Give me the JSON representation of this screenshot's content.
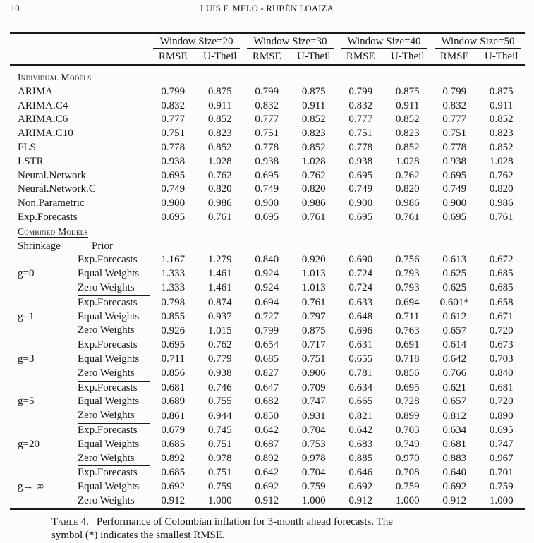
{
  "page": {
    "number": "10",
    "running_header": "LUIS F. MELO - RUBÉN LOAIZA"
  },
  "table": {
    "column_groups": [
      "Window Size=20",
      "Window Size=30",
      "Window Size=40",
      "Window Size=50"
    ],
    "metric_headers": [
      "RMSE",
      "U-Theil"
    ],
    "individual_models": {
      "section_label": "Individual Models",
      "rows": [
        {
          "label": "ARIMA",
          "values": [
            "0.799",
            "0.875",
            "0.799",
            "0.875",
            "0.799",
            "0.875",
            "0.799",
            "0.875"
          ]
        },
        {
          "label": "ARIMA.C4",
          "values": [
            "0.832",
            "0.911",
            "0.832",
            "0.911",
            "0.832",
            "0.911",
            "0.832",
            "0.911"
          ]
        },
        {
          "label": "ARIMA.C6",
          "values": [
            "0.777",
            "0.852",
            "0.777",
            "0.852",
            "0.777",
            "0.852",
            "0.777",
            "0.852"
          ]
        },
        {
          "label": "ARIMA.C10",
          "values": [
            "0.751",
            "0.823",
            "0.751",
            "0.823",
            "0.751",
            "0.823",
            "0.751",
            "0.823"
          ]
        },
        {
          "label": "FLS",
          "values": [
            "0.778",
            "0.852",
            "0.778",
            "0.852",
            "0.778",
            "0.852",
            "0.778",
            "0.852"
          ]
        },
        {
          "label": "LSTR",
          "values": [
            "0.938",
            "1.028",
            "0.938",
            "1.028",
            "0.938",
            "1.028",
            "0.938",
            "1.028"
          ]
        },
        {
          "label": "Neural.Network",
          "values": [
            "0.695",
            "0.762",
            "0.695",
            "0.762",
            "0.695",
            "0.762",
            "0.695",
            "0.762"
          ]
        },
        {
          "label": "Neural.Network.C",
          "values": [
            "0.749",
            "0.820",
            "0.749",
            "0.820",
            "0.749",
            "0.820",
            "0.749",
            "0.820"
          ]
        },
        {
          "label": "Non.Parametric",
          "values": [
            "0.900",
            "0.986",
            "0.900",
            "0.986",
            "0.900",
            "0.986",
            "0.900",
            "0.986"
          ]
        },
        {
          "label": "Exp.Forecasts",
          "values": [
            "0.695",
            "0.761",
            "0.695",
            "0.761",
            "0.695",
            "0.761",
            "0.695",
            "0.761"
          ]
        }
      ]
    },
    "combined_models": {
      "section_label": "Combined Models",
      "shrinkage_header": "Shrinkage",
      "prior_header": "Prior",
      "groups": [
        {
          "shrinkage": "g=0",
          "rows": [
            {
              "prior": "Exp.Forecasts",
              "underlined": false,
              "values": [
                "1.167",
                "1.279",
                "0.840",
                "0.920",
                "0.690",
                "0.756",
                "0.613",
                "0.672"
              ]
            },
            {
              "prior": "Equal Weights",
              "underlined": false,
              "values": [
                "1.333",
                "1.461",
                "0.924",
                "1.013",
                "0.724",
                "0.793",
                "0.625",
                "0.685"
              ]
            },
            {
              "prior": "Zero Weights",
              "underlined": true,
              "values": [
                "1.333",
                "1.461",
                "0.924",
                "1.013",
                "0.724",
                "0.793",
                "0.625",
                "0.685"
              ]
            }
          ]
        },
        {
          "shrinkage": "g=1",
          "rows": [
            {
              "prior": "Exp.Forecasts",
              "underlined": false,
              "values": [
                "0.798",
                "0.874",
                "0.694",
                "0.761",
                "0.633",
                "0.694",
                "0.601*",
                "0.658"
              ]
            },
            {
              "prior": "Equal Weights",
              "underlined": false,
              "values": [
                "0.855",
                "0.937",
                "0.727",
                "0.797",
                "0.648",
                "0.711",
                "0.612",
                "0.671"
              ]
            },
            {
              "prior": "Zero Weights",
              "underlined": true,
              "values": [
                "0.926",
                "1.015",
                "0.799",
                "0.875",
                "0.696",
                "0.763",
                "0.657",
                "0.720"
              ]
            }
          ]
        },
        {
          "shrinkage": "g=3",
          "rows": [
            {
              "prior": "Exp.Forecasts",
              "underlined": false,
              "values": [
                "0.695",
                "0.762",
                "0.654",
                "0.717",
                "0.631",
                "0.691",
                "0.614",
                "0.673"
              ]
            },
            {
              "prior": "Equal Weights",
              "underlined": false,
              "values": [
                "0.711",
                "0.779",
                "0.685",
                "0.751",
                "0.655",
                "0.718",
                "0.642",
                "0.703"
              ]
            },
            {
              "prior": "Zero Weights",
              "underlined": true,
              "values": [
                "0.856",
                "0.938",
                "0.827",
                "0.906",
                "0.781",
                "0.856",
                "0.766",
                "0.840"
              ]
            }
          ]
        },
        {
          "shrinkage": "g=5",
          "rows": [
            {
              "prior": "Exp.Forecasts",
              "underlined": false,
              "values": [
                "0.681",
                "0.746",
                "0.647",
                "0.709",
                "0.634",
                "0.695",
                "0.621",
                "0.681"
              ]
            },
            {
              "prior": "Equal Weights",
              "underlined": false,
              "values": [
                "0.689",
                "0.755",
                "0.682",
                "0.747",
                "0.665",
                "0.728",
                "0.657",
                "0.720"
              ]
            },
            {
              "prior": "Zero Weights",
              "underlined": true,
              "values": [
                "0.861",
                "0.944",
                "0.850",
                "0.931",
                "0.821",
                "0.899",
                "0.812",
                "0.890"
              ]
            }
          ]
        },
        {
          "shrinkage": "g=20",
          "rows": [
            {
              "prior": "Exp.Forecasts",
              "underlined": false,
              "values": [
                "0.679",
                "0.745",
                "0.642",
                "0.704",
                "0.642",
                "0.703",
                "0.634",
                "0.695"
              ]
            },
            {
              "prior": "Equal Weights",
              "underlined": false,
              "values": [
                "0.685",
                "0.751",
                "0.687",
                "0.753",
                "0.683",
                "0.749",
                "0.681",
                "0.747"
              ]
            },
            {
              "prior": "Zero Weights",
              "underlined": true,
              "values": [
                "0.892",
                "0.978",
                "0.892",
                "0.978",
                "0.885",
                "0.970",
                "0.883",
                "0.967"
              ]
            }
          ]
        },
        {
          "shrinkage": "g→ ∞",
          "rows": [
            {
              "prior": "Exp.Forecasts",
              "underlined": false,
              "values": [
                "0.685",
                "0.751",
                "0.642",
                "0.704",
                "0.646",
                "0.708",
                "0.640",
                "0.701"
              ]
            },
            {
              "prior": "Equal Weights",
              "underlined": false,
              "values": [
                "0.692",
                "0.759",
                "0.692",
                "0.759",
                "0.692",
                "0.759",
                "0.692",
                "0.759"
              ]
            },
            {
              "prior": "Zero Weights",
              "underlined": false,
              "values": [
                "0.912",
                "1.000",
                "0.912",
                "1.000",
                "0.912",
                "1.000",
                "0.912",
                "1.000"
              ]
            }
          ]
        }
      ]
    }
  },
  "caption": {
    "label": "Table 4.",
    "line1": "Performance of Colombian inflation for 3-month ahead forecasts. The",
    "line2": "symbol (*) indicates the smallest RMSE."
  }
}
